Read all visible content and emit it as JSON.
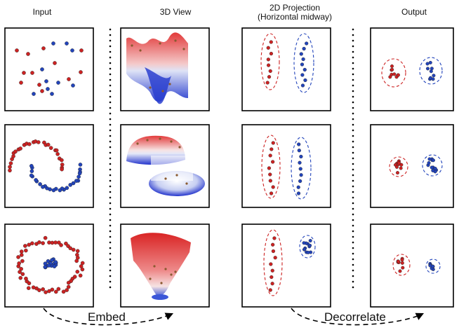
{
  "headers": {
    "input": "Input",
    "view3d": "3D View",
    "projection_line1": "2D Projection",
    "projection_line2": "(Horizontal midway)",
    "output": "Output"
  },
  "arrows": {
    "embed": "Embed",
    "decorrelate": "Decorrelate"
  },
  "rows": [
    "scattered clusters",
    "two moons",
    "concentric rings"
  ],
  "colors": {
    "class_a": "#cc2222",
    "class_b": "#2244bb",
    "class_a_light": "#e8a0a0",
    "class_b_light": "#a0b0e8",
    "frame": "#000000",
    "separator": "#000000"
  }
}
